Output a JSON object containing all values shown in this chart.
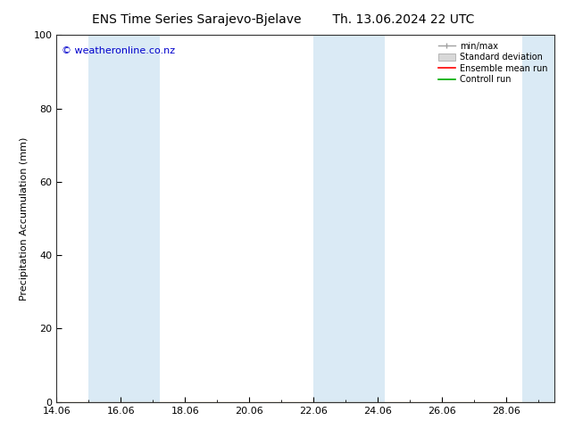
{
  "title": "ENS Time Series Sarajevo-Bjelave",
  "title2": "Th. 13.06.2024 22 UTC",
  "ylabel": "Precipitation Accumulation (mm)",
  "watermark": "© weatheronline.co.nz",
  "watermark_color": "#0000cc",
  "ylim": [
    0,
    100
  ],
  "yticks": [
    0,
    20,
    40,
    60,
    80,
    100
  ],
  "x_min": 14.0,
  "x_max": 29.5,
  "xtick_labels": [
    "14.06",
    "16.06",
    "18.06",
    "20.06",
    "22.06",
    "24.06",
    "26.06",
    "28.06"
  ],
  "xtick_positions": [
    14,
    16,
    18,
    20,
    22,
    24,
    26,
    28
  ],
  "shaded_bands": [
    {
      "start": 15.0,
      "end": 16.5
    },
    {
      "start": 16.5,
      "end": 17.2
    },
    {
      "start": 22.0,
      "end": 23.0
    },
    {
      "start": 23.0,
      "end": 24.2
    },
    {
      "start": 28.5,
      "end": 29.5
    }
  ],
  "band_color": "#daeaf5",
  "background_color": "#ffffff",
  "plot_bg_color": "#ffffff",
  "legend_items": [
    "min/max",
    "Standard deviation",
    "Ensemble mean run",
    "Controll run"
  ],
  "legend_colors": [
    "#a0a0a0",
    "#c0c0c0",
    "#ff0000",
    "#00aa00"
  ],
  "title_fontsize": 10,
  "tick_fontsize": 8,
  "label_fontsize": 8,
  "watermark_fontsize": 8
}
